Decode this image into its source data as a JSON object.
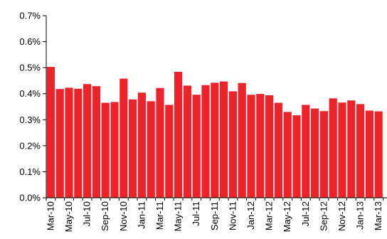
{
  "chart_data": {
    "type": "bar",
    "title": "",
    "xlabel": "",
    "ylabel": "",
    "ylim": [
      0,
      0.7
    ],
    "yticks": [
      "0.0%",
      "0.1%",
      "0.2%",
      "0.3%",
      "0.4%",
      "0.5%",
      "0.6%",
      "0.7%"
    ],
    "grid": false,
    "legend": "none",
    "bar_color": "#ee2229",
    "categories": [
      "Mar-10",
      "Apr-10",
      "May-10",
      "Jun-10",
      "Jul-10",
      "Aug-10",
      "Sep-10",
      "Oct-10",
      "Nov-10",
      "Dec-10",
      "Jan-11",
      "Feb-11",
      "Mar-11",
      "Apr-11",
      "May-11",
      "Jun-11",
      "Jul-11",
      "Aug-11",
      "Sep-11",
      "Oct-11",
      "Nov-11",
      "Dec-11",
      "Jan-12",
      "Feb-12",
      "Mar-12",
      "Apr-12",
      "May-12",
      "Jun-12",
      "Jul-12",
      "Aug-12",
      "Sep-12",
      "Oct-12",
      "Nov-12",
      "Dec-12",
      "Jan-13",
      "Feb-13",
      "Mar-13"
    ],
    "visible_xtick_labels": [
      "Mar-10",
      "May-10",
      "Jul-10",
      "Sep-10",
      "Nov-10",
      "Jan-11",
      "Mar-11",
      "May-11",
      "Jul-11",
      "Sep-11",
      "Nov-11",
      "Jan-12",
      "Mar-12",
      "May-12",
      "Jul-12",
      "Sep-12",
      "Nov-12",
      "Jan-13",
      "Mar-13"
    ],
    "values": [
      0.503,
      0.418,
      0.423,
      0.419,
      0.437,
      0.429,
      0.365,
      0.368,
      0.458,
      0.378,
      0.404,
      0.371,
      0.422,
      0.357,
      0.484,
      0.431,
      0.396,
      0.433,
      0.442,
      0.447,
      0.409,
      0.441,
      0.396,
      0.399,
      0.394,
      0.365,
      0.33,
      0.317,
      0.357,
      0.343,
      0.333,
      0.382,
      0.366,
      0.374,
      0.36,
      0.335,
      0.332
    ]
  }
}
